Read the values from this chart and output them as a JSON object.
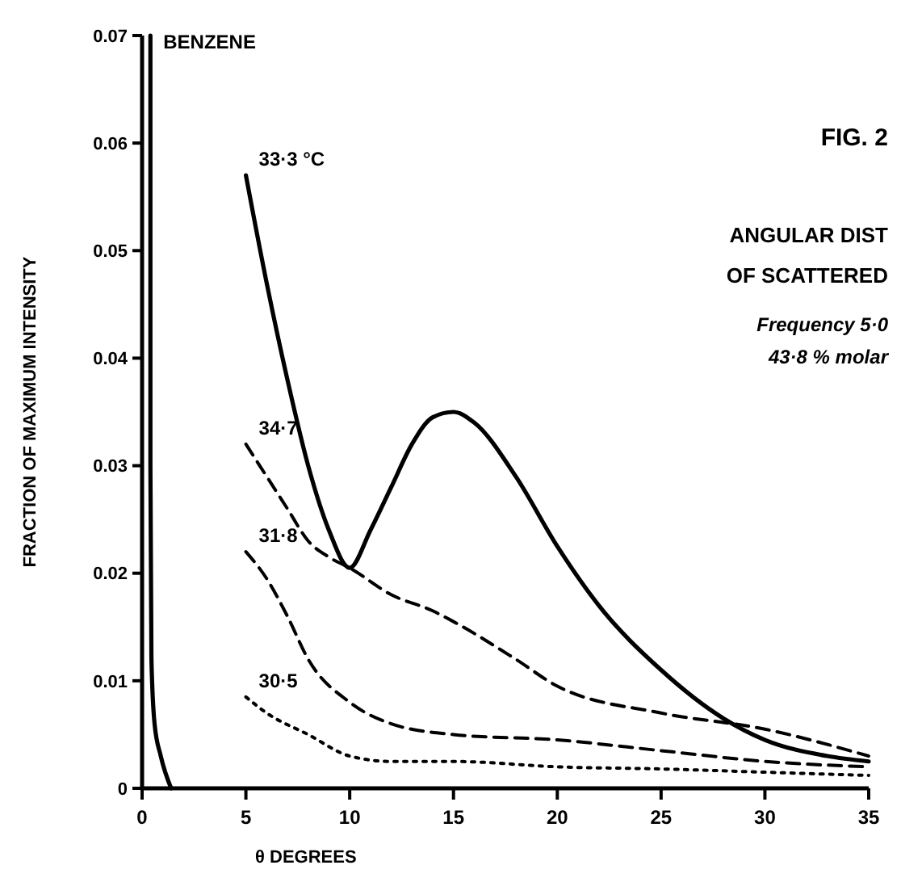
{
  "chart_data": {
    "type": "line",
    "xlabel": "θ DEGREES",
    "ylabel": "FRACTION OF MAXIMUM INTENSITY",
    "annotations": [
      "FIG. 2",
      "ANGULAR DIST",
      "OF SCATTERED",
      "Frequency 5·0",
      "43·8 % molar"
    ],
    "xlim": [
      0,
      35
    ],
    "xticks": [
      0,
      5,
      10,
      15,
      20,
      25,
      30,
      35
    ],
    "ylim": [
      0,
      0.07
    ],
    "yticks": [
      0,
      0.01,
      0.02,
      0.03,
      0.04,
      0.05,
      0.06,
      0.07
    ],
    "grid": false,
    "marker": "none",
    "series": [
      {
        "name": "BENZENE",
        "color": "#000000",
        "line_style": "solid",
        "x": [
          0.4,
          0.4,
          0.45,
          0.6,
          0.9,
          1.4
        ],
        "values": [
          0.07,
          0.03,
          0.012,
          0.006,
          0.003,
          0
        ]
      },
      {
        "name": "33·3 °C",
        "color": "#000000",
        "line_style": "solid",
        "x": [
          5,
          6,
          7,
          8,
          9,
          10,
          11,
          12,
          13,
          14,
          15,
          16,
          18,
          20,
          22,
          25,
          28,
          30,
          33,
          35
        ],
        "values": [
          0.057,
          0.047,
          0.038,
          0.03,
          0.024,
          0.0205,
          0.024,
          0.028,
          0.032,
          0.0345,
          0.035,
          0.034,
          0.029,
          0.0225,
          0.017,
          0.011,
          0.0065,
          0.0045,
          0.003,
          0.0025
        ]
      },
      {
        "name": "34·7",
        "color": "#000000",
        "line_style": "dashed",
        "x": [
          5,
          6,
          7,
          8,
          9,
          10,
          12,
          14,
          15,
          18,
          20,
          25,
          30,
          35
        ],
        "values": [
          0.032,
          0.029,
          0.026,
          0.023,
          0.0215,
          0.0205,
          0.018,
          0.0165,
          0.0155,
          0.012,
          0.0095,
          0.007,
          0.0055,
          0.003
        ]
      },
      {
        "name": "31·8",
        "color": "#000000",
        "line_style": "dashed",
        "x": [
          5,
          6,
          7,
          8,
          10,
          12,
          15,
          20,
          25,
          30,
          35
        ],
        "values": [
          0.022,
          0.0195,
          0.016,
          0.012,
          0.008,
          0.006,
          0.005,
          0.0045,
          0.0035,
          0.0025,
          0.002
        ]
      },
      {
        "name": "30·5",
        "color": "#000000",
        "line_style": "dotted",
        "x": [
          5,
          6,
          8,
          10,
          12,
          15,
          20,
          25,
          30,
          35
        ],
        "values": [
          0.0085,
          0.007,
          0.005,
          0.003,
          0.0025,
          0.0025,
          0.002,
          0.0018,
          0.0015,
          0.0012
        ]
      }
    ]
  }
}
